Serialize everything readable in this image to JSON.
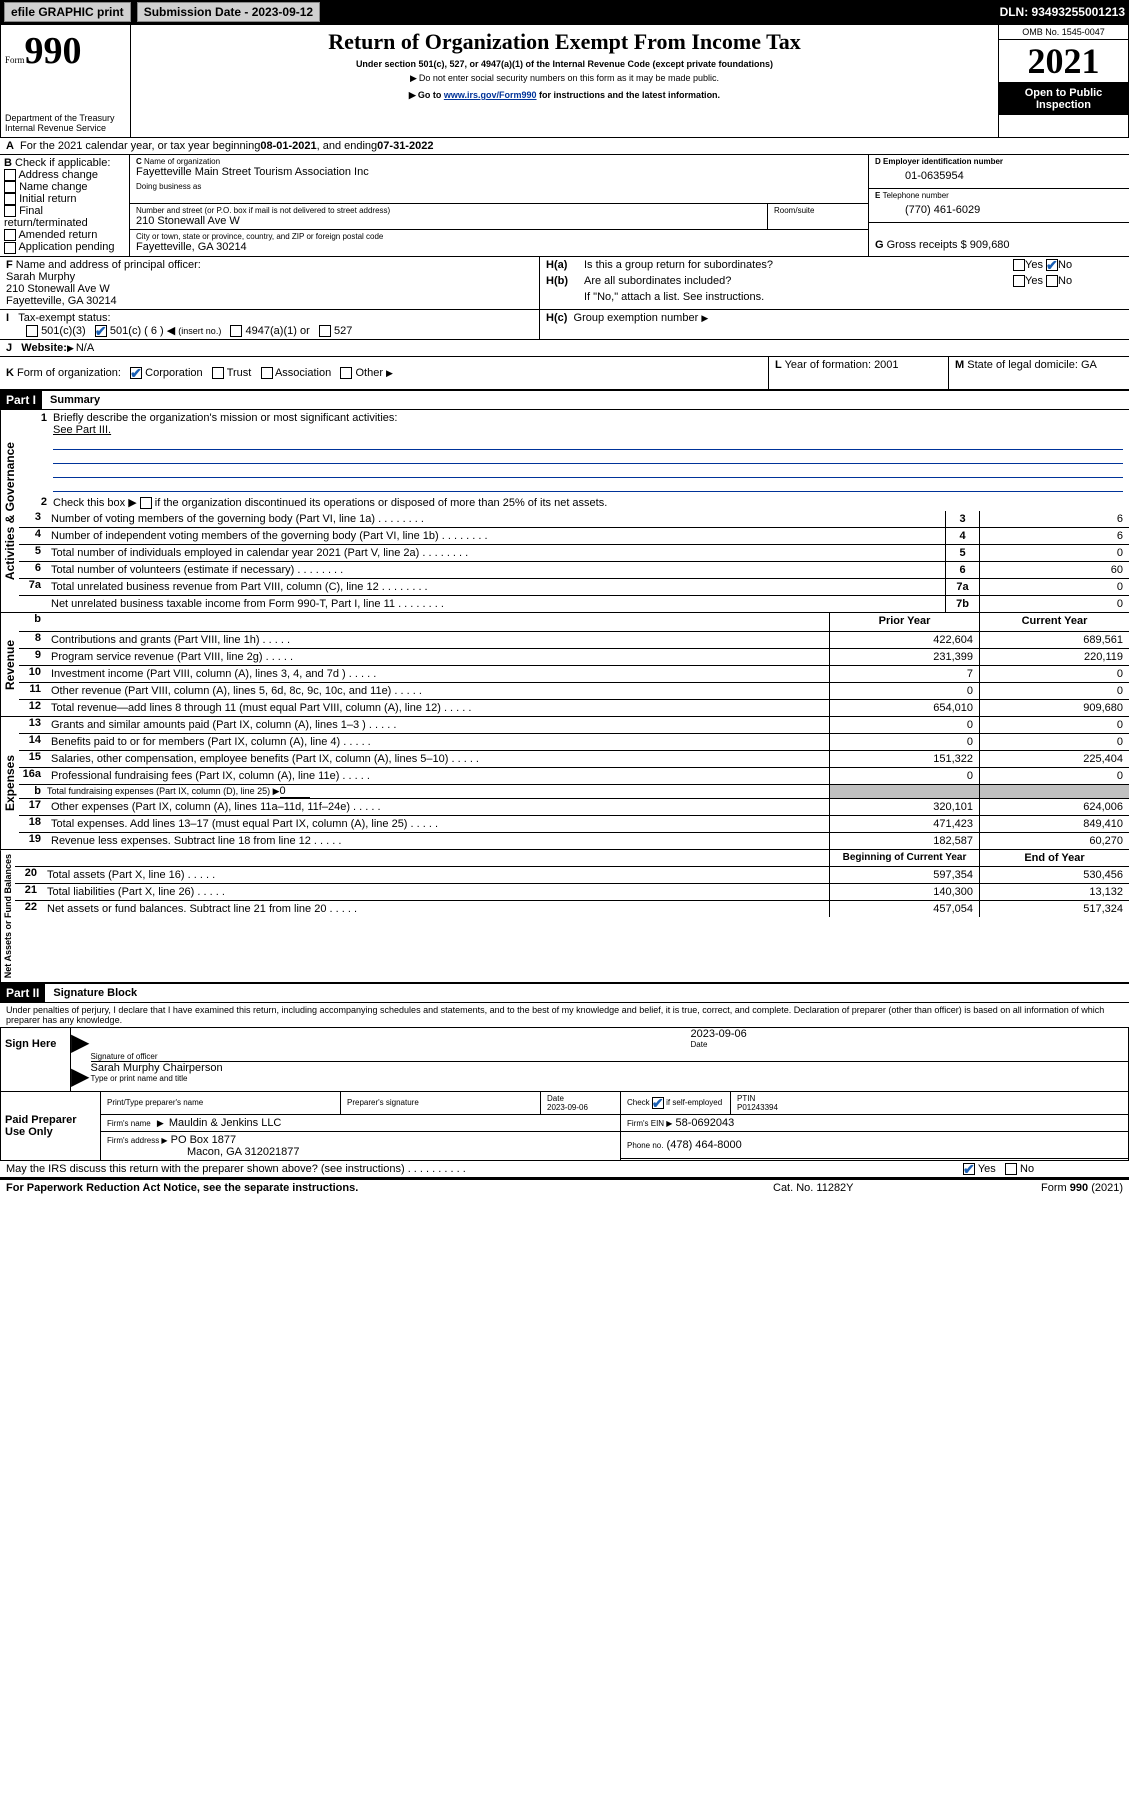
{
  "topbar": {
    "efile_label": "efile GRAPHIC print",
    "submission_label": "Submission Date - 2023-09-12",
    "dln_label": "DLN: 93493255001213"
  },
  "header": {
    "form_prefix": "Form",
    "form_num": "990",
    "title": "Return of Organization Exempt From Income Tax",
    "subtitle": "Under section 501(c), 527, or 4947(a)(1) of the Internal Revenue Code (except private foundations)",
    "note1": "Do not enter social security numbers on this form as it may be made public.",
    "note2_pre": "Go to ",
    "note2_link": "www.irs.gov/Form990",
    "note2_post": " for instructions and the latest information.",
    "dept": "Department of the Treasury",
    "irs": "Internal Revenue Service",
    "omb_label": "OMB No. 1545-0047",
    "year": "2021",
    "open": "Open to Public Inspection"
  },
  "A": {
    "text_pre": "For the 2021 calendar year, or tax year beginning ",
    "begin": "08-01-2021",
    "mid": " , and ending ",
    "end": "07-31-2022"
  },
  "B": {
    "label": "Check if applicable:",
    "opts": [
      "Address change",
      "Name change",
      "Initial return",
      "Final return/terminated",
      "Amended return",
      "Application pending"
    ]
  },
  "C": {
    "name_label": "Name of organization",
    "name": "Fayetteville Main Street Tourism Association Inc",
    "dba_label": "Doing business as",
    "street_label": "Number and street (or P.O. box if mail is not delivered to street address)",
    "room_label": "Room/suite",
    "street": "210 Stonewall Ave W",
    "city_label": "City or town, state or province, country, and ZIP or foreign postal code",
    "city": "Fayetteville, GA  30214"
  },
  "D": {
    "label": "Employer identification number",
    "value": "01-0635954"
  },
  "E": {
    "label": "Telephone number",
    "value": "(770) 461-6029"
  },
  "G": {
    "label": "Gross receipts $",
    "value": "909,680"
  },
  "F": {
    "label": "Name and address of principal officer:",
    "name": "Sarah Murphy",
    "addr1": "210 Stonewall Ave W",
    "addr2": "Fayetteville, GA  30214"
  },
  "H": {
    "a": "Is this a group return for subordinates?",
    "b": "Are all subordinates included?",
    "b_note": "If \"No,\" attach a list. See instructions.",
    "c_label": "Group exemption number",
    "yes": "Yes",
    "no": "No"
  },
  "I": {
    "label": "Tax-exempt status:",
    "c3": "501(c)(3)",
    "c": "501(c) ( 6 )",
    "insert": "(insert no.)",
    "a1": "4947(a)(1) or",
    "n527": "527"
  },
  "J": {
    "label": "Website:",
    "value": "N/A"
  },
  "K": {
    "label": "Form of organization:",
    "opts": [
      "Corporation",
      "Trust",
      "Association",
      "Other"
    ]
  },
  "L": {
    "label": "Year of formation:",
    "value": "2001"
  },
  "M": {
    "label": "State of legal domicile:",
    "value": "GA"
  },
  "part1": {
    "hdr": "Part I",
    "title": "Summary",
    "line1": "Briefly describe the organization's mission or most significant activities:",
    "line1_val": "See Part III.",
    "line2": "Check this box ▶",
    "line2b": "if the organization discontinued its operations or disposed of more than 25% of its net assets.",
    "rows_simple": [
      {
        "n": "3",
        "d": "Number of voting members of the governing body (Part VI, line 1a)",
        "box": "3",
        "v": "6"
      },
      {
        "n": "4",
        "d": "Number of independent voting members of the governing body (Part VI, line 1b)",
        "box": "4",
        "v": "6"
      },
      {
        "n": "5",
        "d": "Total number of individuals employed in calendar year 2021 (Part V, line 2a)",
        "box": "5",
        "v": "0"
      },
      {
        "n": "6",
        "d": "Total number of volunteers (estimate if necessary)",
        "box": "6",
        "v": "60"
      },
      {
        "n": "7a",
        "d": "Total unrelated business revenue from Part VIII, column (C), line 12",
        "box": "7a",
        "v": "0"
      },
      {
        "n": "",
        "d": "Net unrelated business taxable income from Form 990-T, Part I, line 11",
        "box": "7b",
        "v": "0"
      }
    ],
    "sidebar1": "Activities & Governance",
    "sidebar2": "Revenue",
    "sidebar3": "Expenses",
    "sidebar4": "Net Assets or Fund Balances",
    "prior_hdr": "Prior Year",
    "current_hdr": "Current Year",
    "rev_rows": [
      {
        "n": "8",
        "d": "Contributions and grants (Part VIII, line 1h)",
        "p": "422,604",
        "c": "689,561"
      },
      {
        "n": "9",
        "d": "Program service revenue (Part VIII, line 2g)",
        "p": "231,399",
        "c": "220,119"
      },
      {
        "n": "10",
        "d": "Investment income (Part VIII, column (A), lines 3, 4, and 7d )",
        "p": "7",
        "c": "0"
      },
      {
        "n": "11",
        "d": "Other revenue (Part VIII, column (A), lines 5, 6d, 8c, 9c, 10c, and 11e)",
        "p": "0",
        "c": "0"
      },
      {
        "n": "12",
        "d": "Total revenue—add lines 8 through 11 (must equal Part VIII, column (A), line 12)",
        "p": "654,010",
        "c": "909,680"
      }
    ],
    "exp_rows": [
      {
        "n": "13",
        "d": "Grants and similar amounts paid (Part IX, column (A), lines 1–3 )",
        "p": "0",
        "c": "0"
      },
      {
        "n": "14",
        "d": "Benefits paid to or for members (Part IX, column (A), line 4)",
        "p": "0",
        "c": "0"
      },
      {
        "n": "15",
        "d": "Salaries, other compensation, employee benefits (Part IX, column (A), lines 5–10)",
        "p": "151,322",
        "c": "225,404"
      },
      {
        "n": "16a",
        "d": "Professional fundraising fees (Part IX, column (A), line 11e)",
        "p": "0",
        "c": "0"
      }
    ],
    "line16b_pre": "Total fundraising expenses (Part IX, column (D), line 25) ▶",
    "line16b_val": "0",
    "exp_rows2": [
      {
        "n": "17",
        "d": "Other expenses (Part IX, column (A), lines 11a–11d, 11f–24e)",
        "p": "320,101",
        "c": "624,006"
      },
      {
        "n": "18",
        "d": "Total expenses. Add lines 13–17 (must equal Part IX, column (A), line 25)",
        "p": "471,423",
        "c": "849,410"
      },
      {
        "n": "19",
        "d": "Revenue less expenses. Subtract line 18 from line 12",
        "p": "182,587",
        "c": "60,270"
      }
    ],
    "boy_hdr": "Beginning of Current Year",
    "eoy_hdr": "End of Year",
    "na_rows": [
      {
        "n": "20",
        "d": "Total assets (Part X, line 16)",
        "p": "597,354",
        "c": "530,456"
      },
      {
        "n": "21",
        "d": "Total liabilities (Part X, line 26)",
        "p": "140,300",
        "c": "13,132"
      },
      {
        "n": "22",
        "d": "Net assets or fund balances. Subtract line 21 from line 20",
        "p": "457,054",
        "c": "517,324"
      }
    ]
  },
  "part2": {
    "hdr": "Part II",
    "title": "Signature Block",
    "decl": "Under penalties of perjury, I declare that I have examined this return, including accompanying schedules and statements, and to the best of my knowledge and belief, it is true, correct, and complete. Declaration of preparer (other than officer) is based on all information of which preparer has any knowledge.",
    "sign_here": "Sign Here",
    "sig_officer": "Signature of officer",
    "date_label": "Date",
    "sig_date": "2023-09-06",
    "officer_name": "Sarah Murphy  Chairperson",
    "type_name": "Type or print name and title",
    "paid": "Paid Preparer Use Only",
    "prep_name_hdr": "Print/Type preparer's name",
    "prep_sig_hdr": "Preparer's signature",
    "prep_date_hdr": "Date",
    "prep_date": "2023-09-06",
    "check_if": "Check",
    "self_emp": "if self-employed",
    "ptin_label": "PTIN",
    "ptin": "P01243394",
    "firm_name_label": "Firm's name",
    "firm_name": "Mauldin & Jenkins LLC",
    "firm_ein_label": "Firm's EIN ▶",
    "firm_ein": "58-0692043",
    "firm_addr_label": "Firm's address ▶",
    "firm_addr1": "PO Box 1877",
    "firm_addr2": "Macon, GA  312021877",
    "phone_label": "Phone no.",
    "phone": "(478) 464-8000",
    "may_discuss": "May the IRS discuss this return with the preparer shown above? (see instructions)"
  },
  "footer": {
    "pra": "For Paperwork Reduction Act Notice, see the separate instructions.",
    "cat": "Cat. No. 11282Y",
    "form": "Form 990 (2021)"
  }
}
